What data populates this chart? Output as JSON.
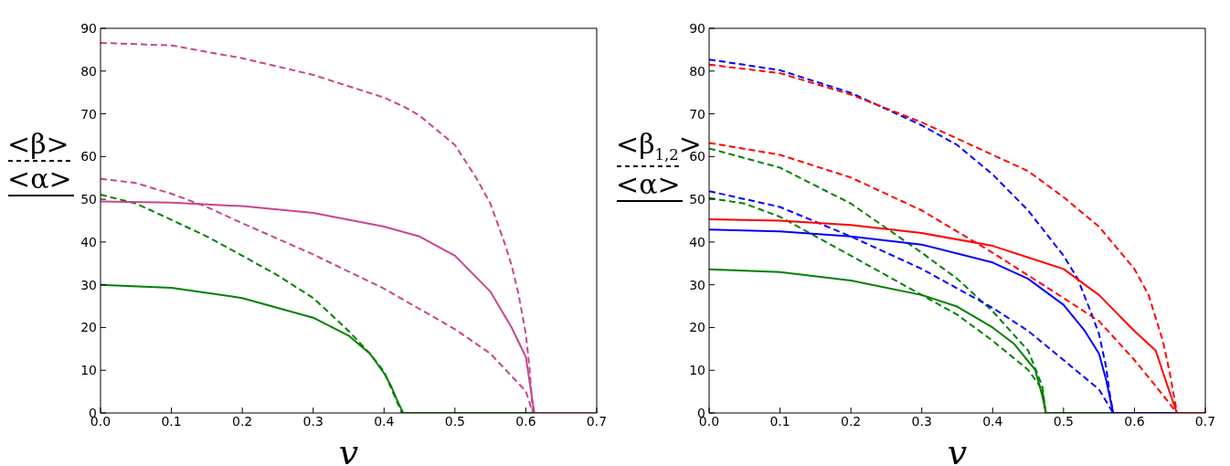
{
  "chart_data": [
    {
      "type": "line",
      "xlabel": "v",
      "ylabel": "<β>\n<α>",
      "xlim": [
        0,
        0.7
      ],
      "ylim": [
        0,
        90
      ],
      "xticks": [
        {
          "value": 0,
          "label": "0.0"
        },
        0.1,
        0.2,
        0.3,
        0.4,
        0.5,
        0.6,
        0.7
      ],
      "yticks": [
        0,
        10,
        20,
        30,
        40,
        50,
        60,
        70,
        80,
        90
      ],
      "grid": false,
      "legend": false,
      "marker": "none",
      "series": [
        {
          "color": "#c8458f",
          "line_style": "dashed",
          "x": [
            0,
            0.1,
            0.2,
            0.3,
            0.4,
            0.43,
            0.45,
            0.5,
            0.53,
            0.55,
            0.57,
            0.58,
            0.59,
            0.6,
            0.605,
            0.61
          ],
          "values": [
            86.6,
            86.0,
            83.0,
            79.1,
            73.8,
            71.5,
            69.6,
            62.7,
            55,
            49,
            39.8,
            34.5,
            27.6,
            18.5,
            10.8,
            0
          ]
        },
        {
          "color": "#c8458f",
          "line_style": "dashed",
          "x": [
            0,
            0.05,
            0.1,
            0.15,
            0.2,
            0.3,
            0.4,
            0.5,
            0.55,
            0.6,
            0.61
          ],
          "values": [
            54.8,
            53.8,
            51.3,
            48.2,
            44.4,
            37.1,
            29.1,
            19.6,
            13.9,
            5.1,
            0
          ]
        },
        {
          "color": "#008000",
          "line_style": "dashed",
          "x": [
            0,
            0.05,
            0.1,
            0.15,
            0.2,
            0.25,
            0.3,
            0.35,
            0.38,
            0.4,
            0.425
          ],
          "values": [
            51.1,
            49,
            45.2,
            41.3,
            36.8,
            32.2,
            26.9,
            19.2,
            13.9,
            9.7,
            0
          ]
        },
        {
          "color": "#008000",
          "line_style": "solid",
          "x": [
            0,
            0.1,
            0.2,
            0.3,
            0.35,
            0.38,
            0.4,
            0.41,
            0.42,
            0.427,
            0.7
          ],
          "values": [
            30,
            29.3,
            26.9,
            22.3,
            18.1,
            13.9,
            9.3,
            6.3,
            2.4,
            0,
            0
          ]
        },
        {
          "color": "#c8458f",
          "line_style": "solid",
          "x": [
            0,
            0.1,
            0.2,
            0.3,
            0.4,
            0.45,
            0.5,
            0.55,
            0.58,
            0.6,
            0.612,
            0.7
          ],
          "values": [
            49.5,
            49.2,
            48.4,
            46.8,
            43.6,
            41.3,
            36.8,
            28.4,
            20,
            13.1,
            0,
            0
          ]
        }
      ]
    },
    {
      "type": "line",
      "xlabel": "v",
      "ylabel": "<β$_{1,2}$>\n<α>",
      "xlim": [
        0,
        0.7
      ],
      "ylim": [
        0,
        90
      ],
      "xticks": [
        {
          "value": 0,
          "label": "0.0"
        },
        0.1,
        0.2,
        0.3,
        0.4,
        0.5,
        0.6,
        0.7
      ],
      "yticks": [
        0,
        10,
        20,
        30,
        40,
        50,
        60,
        70,
        80,
        90
      ],
      "grid": false,
      "legend": false,
      "marker": "none",
      "series": [
        {
          "color": "#0000ff",
          "line_style": "dashed",
          "x": [
            0,
            0.1,
            0.2,
            0.3,
            0.35,
            0.4,
            0.45,
            0.5,
            0.52,
            0.54,
            0.55,
            0.56,
            0.565,
            0.57
          ],
          "values": [
            82.7,
            80.2,
            74.9,
            67.3,
            62.7,
            55.8,
            47.4,
            36.8,
            31.4,
            23,
            18.5,
            10.8,
            4.7,
            0
          ]
        },
        {
          "color": "#ff0000",
          "line_style": "dashed",
          "x": [
            0,
            0.1,
            0.2,
            0.3,
            0.4,
            0.45,
            0.5,
            0.55,
            0.6,
            0.62,
            0.64,
            0.65,
            0.66
          ],
          "values": [
            81.5,
            79.5,
            74.5,
            68,
            60.4,
            56.6,
            50.5,
            43.6,
            33.7,
            27.6,
            16.9,
            9.3,
            0
          ]
        },
        {
          "color": "#ff0000",
          "line_style": "dashed",
          "x": [
            0,
            0.1,
            0.2,
            0.3,
            0.4,
            0.5,
            0.55,
            0.6,
            0.63,
            0.66
          ],
          "values": [
            63.2,
            60.4,
            55.1,
            47.4,
            37.5,
            26.9,
            21.5,
            12.4,
            6.3,
            0
          ]
        },
        {
          "color": "#008000",
          "line_style": "dashed",
          "x": [
            0,
            0.1,
            0.2,
            0.3,
            0.35,
            0.4,
            0.45,
            0.47,
            0.475
          ],
          "values": [
            61.9,
            57.4,
            49,
            37.5,
            31.4,
            23.8,
            14.6,
            6.3,
            0
          ]
        },
        {
          "color": "#0000ff",
          "line_style": "dashed",
          "x": [
            0,
            0.1,
            0.2,
            0.3,
            0.4,
            0.45,
            0.5,
            0.55,
            0.57
          ],
          "values": [
            51.9,
            48.2,
            41.3,
            33.7,
            24.6,
            19.2,
            12.4,
            5.5,
            0
          ]
        },
        {
          "color": "#008000",
          "line_style": "dashed",
          "x": [
            0,
            0.05,
            0.1,
            0.2,
            0.3,
            0.35,
            0.4,
            0.45,
            0.47,
            0.475
          ],
          "values": [
            50.3,
            49,
            45.9,
            36.8,
            27.6,
            23,
            16.9,
            10.1,
            5.5,
            0
          ]
        },
        {
          "color": "#008000",
          "line_style": "solid",
          "x": [
            0,
            0.1,
            0.2,
            0.3,
            0.35,
            0.4,
            0.43,
            0.46,
            0.47,
            0.475,
            0.7
          ],
          "values": [
            33.6,
            33,
            31,
            27.6,
            24.9,
            20,
            16.2,
            10.1,
            4,
            0,
            0
          ]
        },
        {
          "color": "#0000ff",
          "line_style": "solid",
          "x": [
            0,
            0.1,
            0.2,
            0.3,
            0.4,
            0.45,
            0.5,
            0.53,
            0.55,
            0.56,
            0.57,
            0.7
          ],
          "values": [
            42.9,
            42.5,
            41.3,
            39.4,
            35.2,
            31.4,
            25.3,
            19.2,
            13.9,
            7.8,
            0,
            0
          ]
        },
        {
          "color": "#ff0000",
          "line_style": "solid",
          "x": [
            0,
            0.1,
            0.2,
            0.3,
            0.4,
            0.45,
            0.5,
            0.55,
            0.6,
            0.63,
            0.65,
            0.66,
            0.7
          ],
          "values": [
            45.3,
            45,
            44,
            42.1,
            39.1,
            36.4,
            33.7,
            27.6,
            19.2,
            14.6,
            4.7,
            0,
            0
          ]
        }
      ]
    }
  ]
}
